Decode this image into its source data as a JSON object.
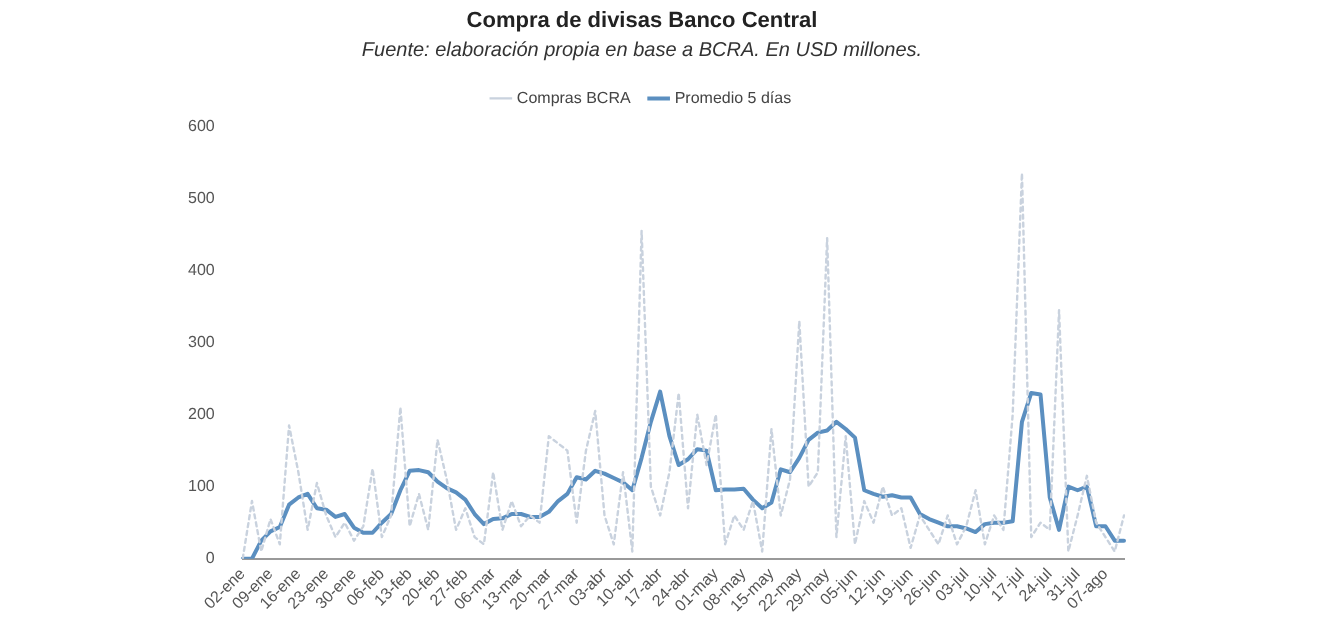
{
  "chart_data": {
    "type": "line",
    "title": "Compra de divisas Banco Central",
    "subtitle": "Fuente: elaboración propia en base a BCRA. En USD millones.",
    "categories": [
      "02-ene",
      null,
      null,
      "09-ene",
      null,
      null,
      "16-ene",
      null,
      null,
      "23-ene",
      null,
      null,
      "30-ene",
      null,
      null,
      "06-feb",
      null,
      null,
      "13-feb",
      null,
      null,
      "20-feb",
      null,
      null,
      "27-feb",
      null,
      null,
      "06-mar",
      null,
      null,
      "13-mar",
      null,
      null,
      "20-mar",
      null,
      null,
      "27-mar",
      null,
      null,
      "03-abr",
      null,
      null,
      "10-abr",
      null,
      null,
      "17-abr",
      null,
      null,
      "24-abr",
      null,
      null,
      "01-may",
      null,
      null,
      "08-may",
      null,
      null,
      "15-may",
      null,
      null,
      "22-may",
      null,
      null,
      "29-may",
      null,
      null,
      "05-jun",
      null,
      null,
      "12-jun",
      null,
      null,
      "19-jun",
      null,
      null,
      "26-jun",
      null,
      null,
      "03-jul",
      null,
      null,
      "10-jul",
      null,
      null,
      "17-jul",
      null,
      null,
      "24-jul",
      null,
      null,
      "31-jul",
      null,
      null,
      "07-ago",
      null,
      null
    ],
    "series": [
      {
        "name": "Compras BCRA",
        "color": "#c9d2de",
        "line_style": "dotted",
        "values": [
          0,
          80,
          10,
          55,
          20,
          185,
          120,
          40,
          105,
          60,
          30,
          50,
          25,
          45,
          125,
          30,
          60,
          210,
          45,
          90,
          40,
          165,
          110,
          40,
          70,
          30,
          20,
          120,
          40,
          80,
          45,
          60,
          50,
          170,
          160,
          150,
          50,
          150,
          205,
          60,
          20,
          120,
          10,
          455,
          100,
          60,
          120,
          230,
          70,
          200,
          130,
          200,
          20,
          60,
          40,
          80,
          10,
          180,
          60,
          110,
          330,
          100,
          120,
          445,
          30,
          170,
          20,
          80,
          50,
          100,
          60,
          70,
          15,
          60,
          40,
          20,
          60,
          20,
          45,
          95,
          20,
          60,
          40,
          200,
          535,
          30,
          50,
          40,
          345,
          10,
          60,
          115,
          50,
          30,
          10,
          60
        ]
      },
      {
        "name": "Promedio 5 días",
        "color": "#5b8fc0",
        "line_style": "solid",
        "values": [
          0,
          0,
          25,
          38,
          44,
          75,
          85,
          90,
          70,
          68,
          58,
          62,
          43,
          36,
          36,
          50,
          62,
          95,
          122,
          123,
          120,
          107,
          98,
          92,
          82,
          62,
          48,
          55,
          56,
          62,
          62,
          58,
          58,
          65,
          80,
          90,
          113,
          110,
          122,
          118,
          112,
          106,
          95,
          140,
          190,
          232,
          170,
          130,
          138,
          152,
          150,
          95,
          96,
          96,
          97,
          82,
          70,
          78,
          124,
          120,
          140,
          165,
          175,
          178,
          190,
          180,
          168,
          95,
          90,
          86,
          88,
          85,
          85,
          62,
          55,
          50,
          45,
          45,
          42,
          37,
          48,
          50,
          50,
          52,
          190,
          230,
          228,
          85,
          40,
          100,
          95,
          100,
          45,
          45,
          25,
          25
        ]
      }
    ],
    "ylim": [
      0,
      600
    ],
    "yticks": [
      0,
      100,
      200,
      300,
      400,
      500,
      600
    ],
    "legend": "top",
    "grid": false,
    "marker": "none"
  }
}
